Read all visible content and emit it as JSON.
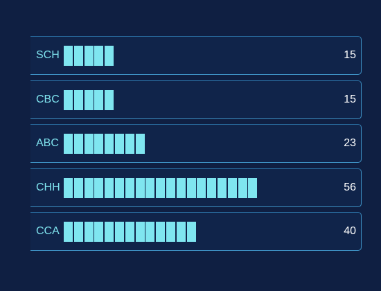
{
  "chart_data": {
    "type": "bar",
    "orientation": "horizontal",
    "style": "segmented",
    "max_segments": 22,
    "categories": [
      "SCH",
      "CBC",
      "ABC",
      "CHH",
      "CCA"
    ],
    "values": [
      15,
      15,
      23,
      56,
      40
    ],
    "units_per_segment": 3,
    "colors": {
      "background": "#0f1f42",
      "row_fill": "#10244a",
      "border": "#3f93c6",
      "bar": "#7fe6f0",
      "label": "#7fe3ee",
      "value": "#ffffff"
    }
  }
}
